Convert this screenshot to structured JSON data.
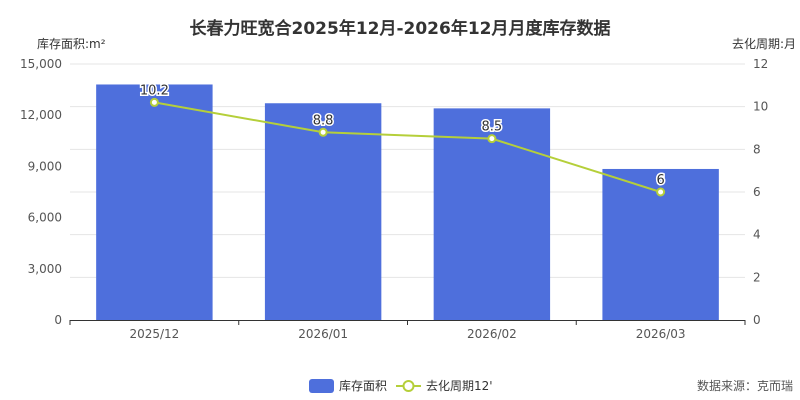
{
  "title": "长春力旺宽合2025年12月-2026年12月月度库存数据",
  "source": "数据来源：克而瑞",
  "colors": {
    "bar": "#4e6fdc",
    "line": "#b5cf3a"
  },
  "chart_data": {
    "type": "bar+line",
    "categories": [
      "2025/12",
      "2026/01",
      "2026/02",
      "2026/03"
    ],
    "series": [
      {
        "name": "库存面积",
        "type": "bar",
        "axis": "left",
        "values": [
          13800,
          12700,
          12400,
          8850
        ]
      },
      {
        "name": "去化周期12'",
        "type": "line",
        "axis": "right",
        "values": [
          10.2,
          8.8,
          8.5,
          6
        ]
      }
    ],
    "y_left": {
      "label": "库存面积:m²",
      "min": 0,
      "max": 15000,
      "ticks": [
        "0",
        "3,000",
        "6,000",
        "9,000",
        "12,000",
        "15,000"
      ]
    },
    "y_right": {
      "label": "去化周期:月",
      "min": 0,
      "max": 12,
      "ticks": [
        "0",
        "2",
        "4",
        "6",
        "8",
        "10",
        "12"
      ]
    },
    "point_labels": [
      "10.2",
      "8.8",
      "8.5",
      "6"
    ],
    "grid": true,
    "legend": "bottom-center"
  }
}
